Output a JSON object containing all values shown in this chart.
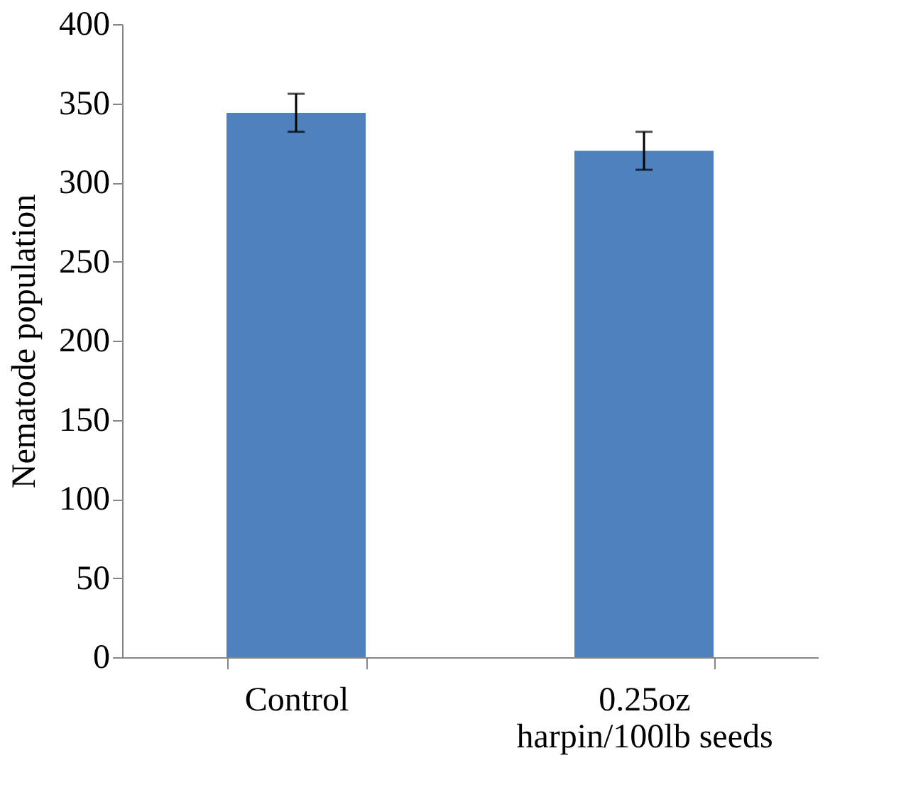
{
  "chart_data": {
    "type": "bar",
    "ylabel": "Nematode population",
    "categories": [
      "Control",
      "0.25oz\nharpin/100lb seeds"
    ],
    "values": [
      344,
      320
    ],
    "errors": [
      12,
      12
    ],
    "color": "#4f81bd",
    "ylim": [
      0,
      400
    ],
    "yticks": [
      0,
      50,
      100,
      150,
      200,
      250,
      300,
      350,
      400
    ],
    "grid": false
  }
}
